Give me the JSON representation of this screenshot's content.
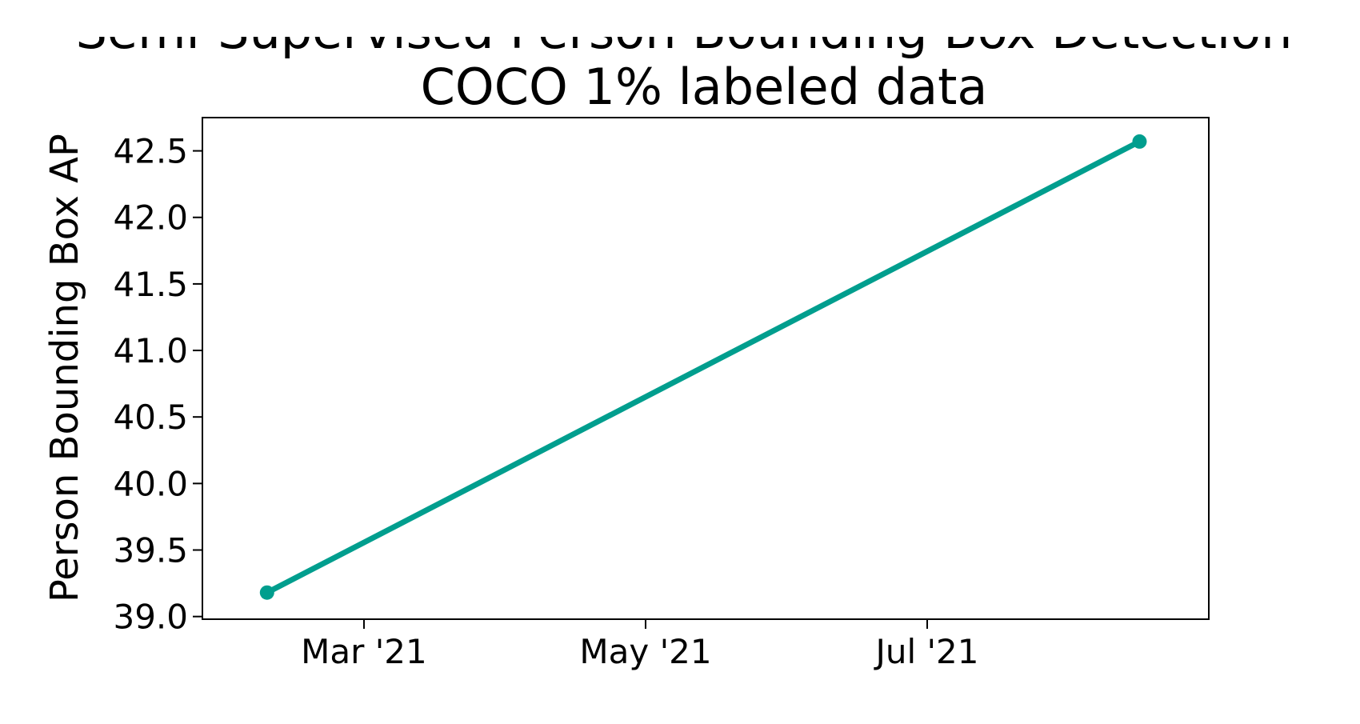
{
  "chart_data": {
    "type": "line",
    "title_line1": "Semi-Supervised Person Bounding Box Detection",
    "title_line2": "COCO 1% labeled data",
    "xlabel": "",
    "ylabel": "Person Bounding Box AP",
    "x_axis_type": "date",
    "x_ticks": [
      "Mar '21",
      "May '21",
      "Jul '21"
    ],
    "y_ticks": [
      "39.0",
      "39.5",
      "40.0",
      "40.5",
      "41.0",
      "41.5",
      "42.0",
      "42.5"
    ],
    "ylim": [
      38.98,
      42.75
    ],
    "grid": false,
    "legend": "none",
    "series": [
      {
        "x": [
          "2021-02-08",
          "2021-08-16"
        ],
        "values": [
          39.18,
          42.57
        ],
        "color": "#009e8e"
      }
    ]
  }
}
